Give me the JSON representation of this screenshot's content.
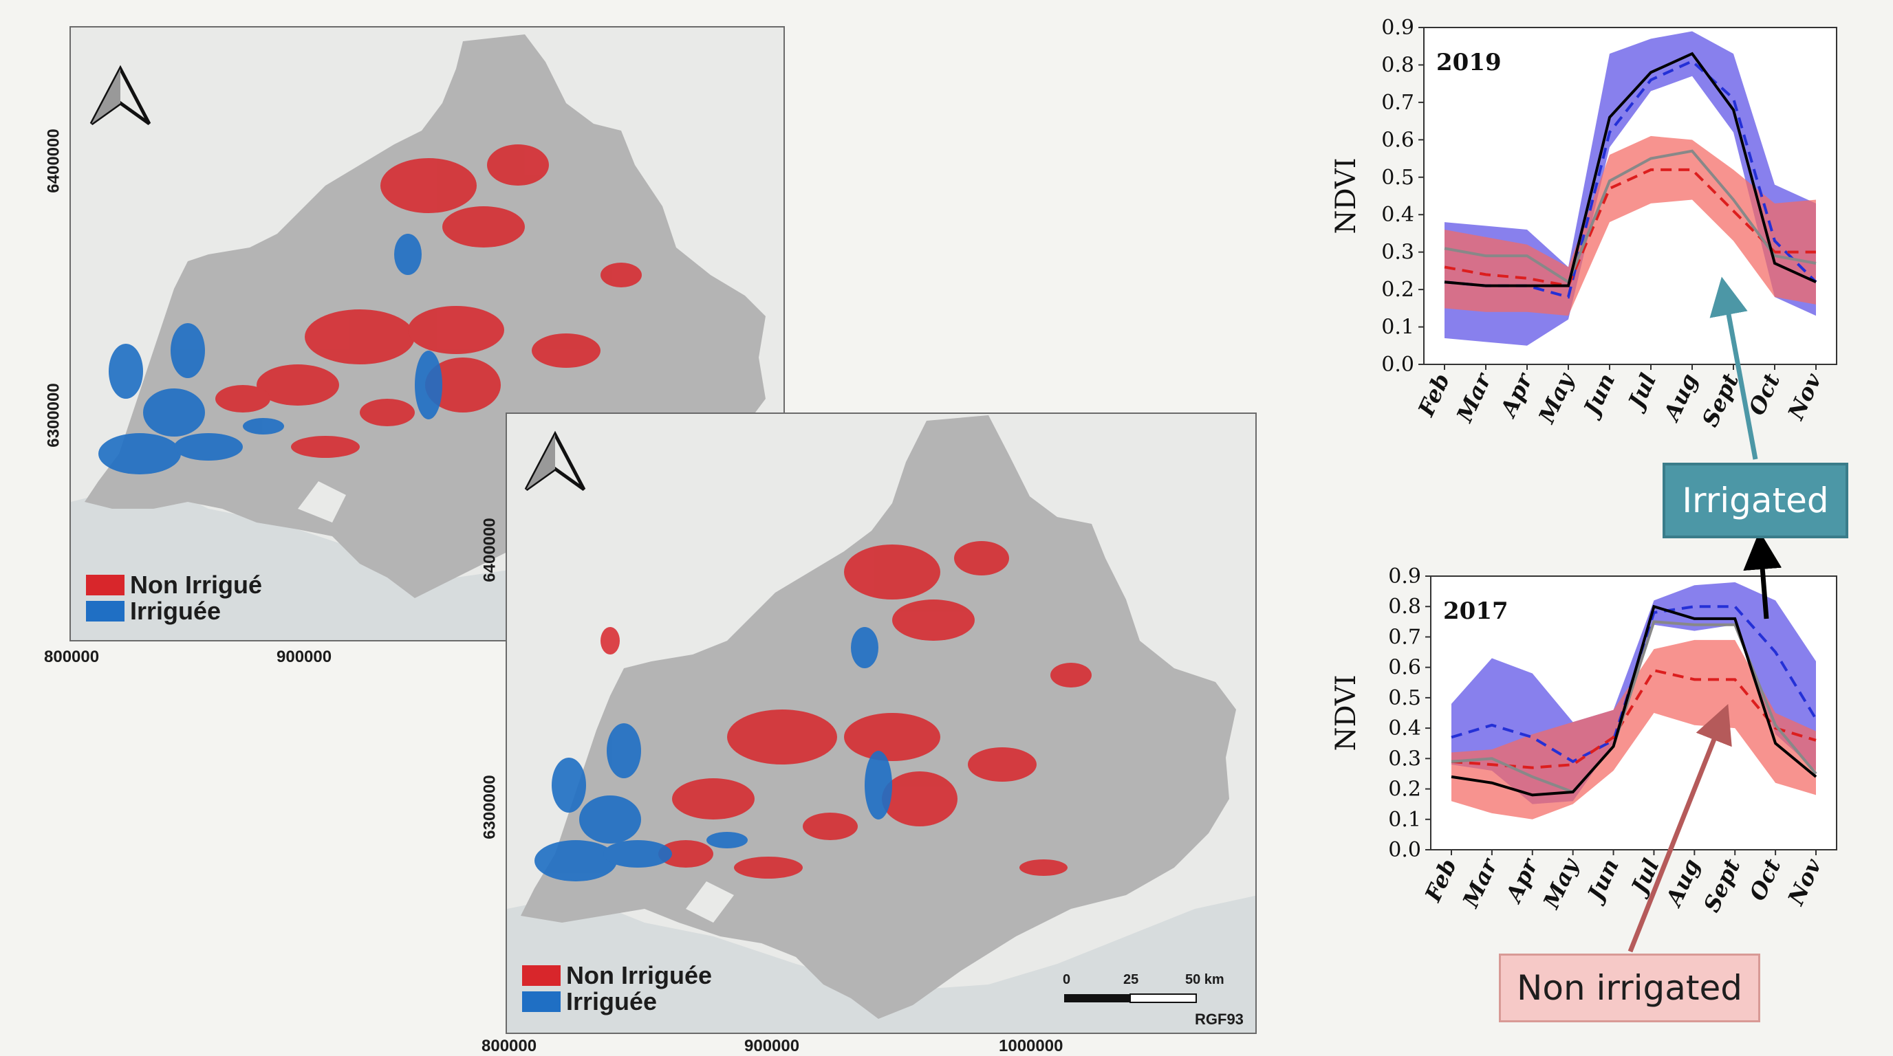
{
  "maps": [
    {
      "id": "map1",
      "legend": {
        "non_irrigated": "Non Irrigué",
        "irrigated": "Irriguée"
      },
      "x_ticks": [
        "800000",
        "900000"
      ],
      "y_ticks": [
        "6400000",
        "6300000"
      ]
    },
    {
      "id": "map2",
      "legend": {
        "non_irrigated": "Non Irriguée",
        "irrigated": "Irriguée"
      },
      "x_ticks": [
        "800000",
        "900000",
        "1000000"
      ],
      "y_ticks": [
        "6400000",
        "6300000"
      ],
      "scale_labels": [
        "0",
        "25",
        "50 km"
      ],
      "crs": "RGF93"
    }
  ],
  "colors": {
    "non_irrigated": "#d8262b",
    "irrigated": "#1f6fc4",
    "region": "#b3b3b3",
    "irrigated_band": "#5a4fe6",
    "non_irrigated_band": "#f46a64"
  },
  "callouts": {
    "irrigated": "Irrigated",
    "non_irrigated": "Non irrigated"
  },
  "chart_data": [
    {
      "type": "line",
      "title": "2019",
      "ylabel": "NDVI",
      "xlabel": "",
      "ylim": [
        0.0,
        0.9
      ],
      "yticks": [
        "0.0",
        "0.1",
        "0.2",
        "0.3",
        "0.4",
        "0.5",
        "0.6",
        "0.7",
        "0.8",
        "0.9"
      ],
      "categories": [
        "Feb",
        "Mar",
        "Apr",
        "May",
        "Jun",
        "Jul",
        "Aug",
        "Sept",
        "Oct",
        "Nov"
      ],
      "bands": [
        {
          "name": "irrigated range",
          "color": "#5a4fe6",
          "lower": [
            0.07,
            0.06,
            0.05,
            0.12,
            0.58,
            0.73,
            0.77,
            0.62,
            0.18,
            0.13
          ],
          "upper": [
            0.38,
            0.37,
            0.36,
            0.26,
            0.83,
            0.87,
            0.89,
            0.83,
            0.48,
            0.43
          ]
        },
        {
          "name": "non irrigated range",
          "color": "#f46a64",
          "lower": [
            0.15,
            0.14,
            0.14,
            0.13,
            0.38,
            0.43,
            0.44,
            0.33,
            0.18,
            0.16
          ],
          "upper": [
            0.36,
            0.34,
            0.32,
            0.26,
            0.56,
            0.61,
            0.6,
            0.52,
            0.43,
            0.44
          ]
        }
      ],
      "series": [
        {
          "name": "irrigated mean",
          "style": "dashed",
          "color": "#2430d6",
          "values": [
            0.22,
            0.21,
            0.21,
            0.18,
            0.62,
            0.76,
            0.81,
            0.71,
            0.33,
            0.22
          ]
        },
        {
          "name": "non irrigated mean",
          "style": "dashed",
          "color": "#dc1e1e",
          "values": [
            0.26,
            0.24,
            0.23,
            0.21,
            0.47,
            0.52,
            0.52,
            0.41,
            0.3,
            0.3
          ]
        },
        {
          "name": "non irrigated median",
          "style": "solid",
          "color": "#888888",
          "values": [
            0.31,
            0.29,
            0.29,
            0.22,
            0.49,
            0.55,
            0.57,
            0.44,
            0.29,
            0.27
          ]
        },
        {
          "name": "irrigated median",
          "style": "solid",
          "color": "#000000",
          "values": [
            0.22,
            0.21,
            0.21,
            0.21,
            0.66,
            0.78,
            0.83,
            0.68,
            0.27,
            0.22
          ]
        }
      ]
    },
    {
      "type": "line",
      "title": "2017",
      "ylabel": "NDVI",
      "xlabel": "",
      "ylim": [
        0.0,
        0.9
      ],
      "yticks": [
        "0.0",
        "0.1",
        "0.2",
        "0.3",
        "0.4",
        "0.5",
        "0.6",
        "0.7",
        "0.8",
        "0.9"
      ],
      "categories": [
        "Feb",
        "Mar",
        "Apr",
        "May",
        "Jun",
        "Jul",
        "Aug",
        "Sept",
        "Oct",
        "Nov"
      ],
      "bands": [
        {
          "name": "irrigated range",
          "color": "#5a4fe6",
          "lower": [
            0.28,
            0.26,
            0.15,
            0.16,
            0.35,
            0.74,
            0.72,
            0.74,
            0.38,
            0.26
          ],
          "upper": [
            0.48,
            0.63,
            0.58,
            0.42,
            0.46,
            0.82,
            0.87,
            0.88,
            0.82,
            0.62
          ]
        },
        {
          "name": "non irrigated range",
          "color": "#f46a64",
          "lower": [
            0.16,
            0.12,
            0.1,
            0.15,
            0.26,
            0.45,
            0.41,
            0.4,
            0.22,
            0.18
          ],
          "upper": [
            0.32,
            0.33,
            0.38,
            0.42,
            0.46,
            0.66,
            0.69,
            0.69,
            0.45,
            0.39
          ]
        }
      ],
      "series": [
        {
          "name": "irrigated mean",
          "style": "dashed",
          "color": "#2430d6",
          "values": [
            0.37,
            0.41,
            0.37,
            0.29,
            0.36,
            0.78,
            0.8,
            0.8,
            0.65,
            0.43
          ]
        },
        {
          "name": "non irrigated mean",
          "style": "dashed",
          "color": "#dc1e1e",
          "values": [
            0.29,
            0.28,
            0.27,
            0.28,
            0.37,
            0.59,
            0.56,
            0.56,
            0.4,
            0.36
          ]
        },
        {
          "name": "non irrigated median",
          "style": "solid",
          "color": "#888888",
          "values": [
            0.29,
            0.3,
            0.24,
            0.19,
            0.34,
            0.75,
            0.74,
            0.74,
            0.41,
            0.25
          ]
        },
        {
          "name": "irrigated median",
          "style": "solid",
          "color": "#000000",
          "values": [
            0.24,
            0.22,
            0.18,
            0.19,
            0.34,
            0.8,
            0.76,
            0.76,
            0.35,
            0.24
          ]
        }
      ]
    }
  ]
}
